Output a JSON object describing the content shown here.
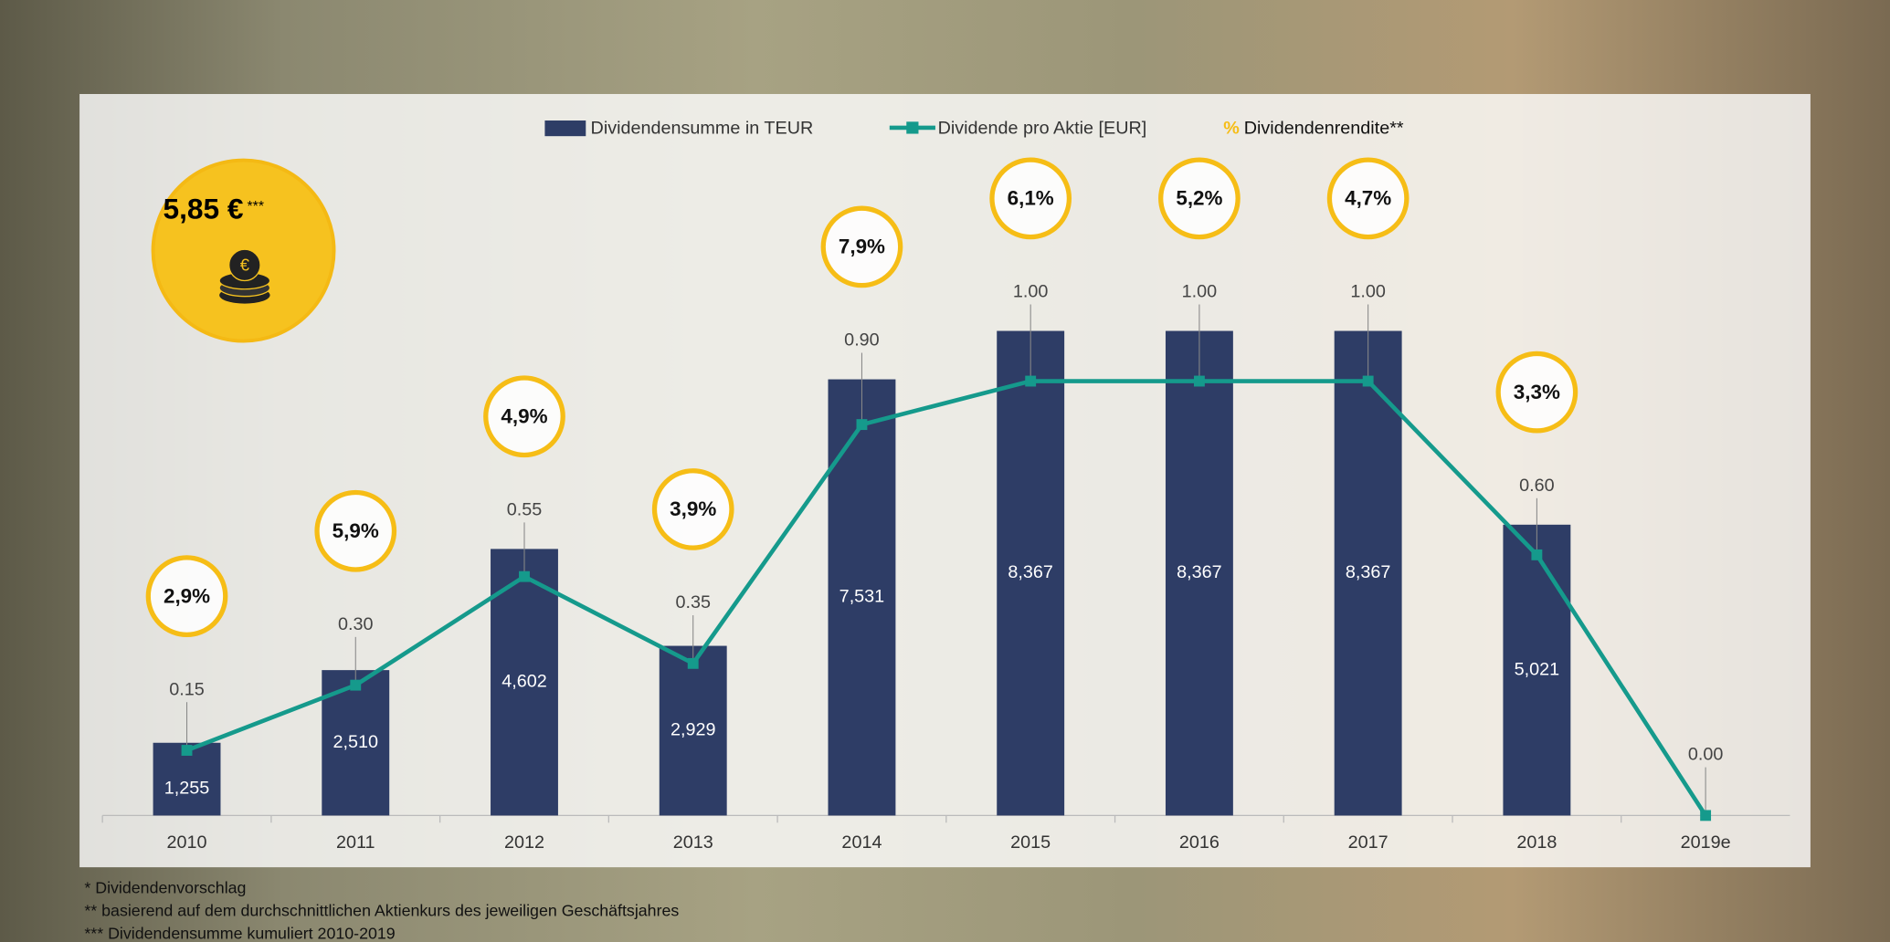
{
  "summary": {
    "value": "5,85 €",
    "superscript": "***"
  },
  "chart_data": {
    "type": "bar",
    "categories": [
      "2010",
      "2011",
      "2012",
      "2013",
      "2014",
      "2015",
      "2016",
      "2017",
      "2018",
      "2019e"
    ],
    "series": [
      {
        "name": "Dividendensumme in TEUR",
        "type": "bar",
        "color": "#2e3d66",
        "values": [
          1255,
          2510,
          4602,
          2929,
          7531,
          8367,
          8367,
          8367,
          5021,
          null
        ],
        "value_labels": [
          "1,255",
          "2,510",
          "4,602",
          "2,929",
          "7,531",
          "8,367",
          "8,367",
          "8,367",
          "5,021",
          null
        ]
      },
      {
        "name": "Dividende pro Aktie [EUR]",
        "type": "line",
        "axis": "y2",
        "color": "#159a8c",
        "values": [
          0.15,
          0.3,
          0.55,
          0.35,
          0.9,
          1.0,
          1.0,
          1.0,
          0.6,
          0.0
        ],
        "value_labels": [
          "0.15",
          "0.30",
          "0.55",
          "0.35",
          "0.90",
          "1.00",
          "1.00",
          "1.00",
          "0.60",
          "0.00"
        ]
      },
      {
        "name": "Dividendenrendite**",
        "type": "label",
        "legend_symbol": "%",
        "color": "#f6bd16",
        "values": [
          2.9,
          5.9,
          4.9,
          3.9,
          7.9,
          6.1,
          5.2,
          4.7,
          3.3,
          null
        ],
        "value_labels": [
          "2,9%",
          "5,9%",
          "4,9%",
          "3,9%",
          "7,9%",
          "6,1%",
          "5,2%",
          "4,7%",
          "3,3%",
          null
        ]
      }
    ],
    "ylim": [
      0,
      12000
    ],
    "y2lim": [
      0,
      1.6
    ],
    "legend": "top"
  },
  "footnotes": [
    "* Dividendenvorschlag",
    "** basierend auf dem durchschnittlichen Aktienkurs des jeweiligen Geschäftsjahres",
    "*** Dividendensumme kumuliert 2010-2019"
  ]
}
